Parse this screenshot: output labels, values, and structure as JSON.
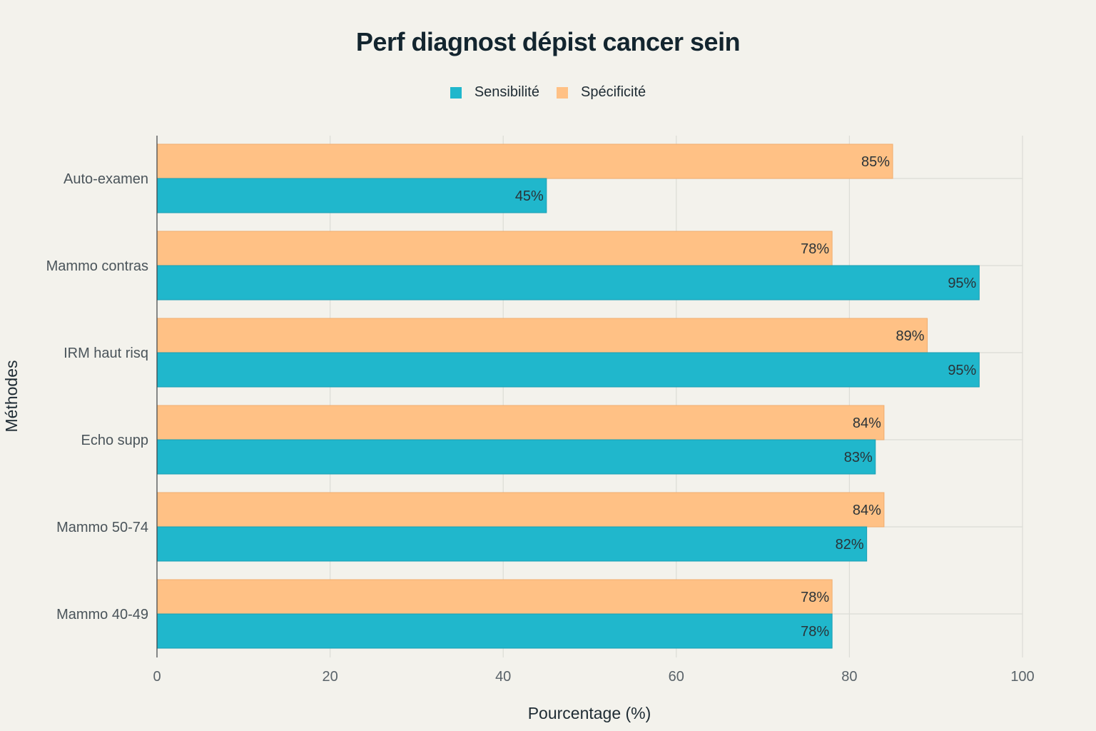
{
  "chart_data": {
    "type": "bar",
    "orientation": "horizontal",
    "title": "Perf diagnost dépist cancer sein",
    "xlabel": "Pourcentage (%)",
    "ylabel": "Méthodes",
    "xlim": [
      0,
      100
    ],
    "xticks": [
      0,
      20,
      40,
      60,
      80,
      100
    ],
    "grid": true,
    "legend_position": "top-center",
    "categories": [
      "Auto-examen",
      "Mammo contras",
      "IRM haut risq",
      "Echo supp",
      "Mammo 50-74",
      "Mammo 40-49"
    ],
    "series": [
      {
        "name": "Sensibilité",
        "color": "#20b7cc",
        "values": [
          45,
          95,
          95,
          83,
          82,
          78
        ],
        "labels": [
          "45%",
          "95%",
          "95%",
          "83%",
          "82%",
          "78%"
        ]
      },
      {
        "name": "Spécificité",
        "color": "#ffc185",
        "values": [
          85,
          78,
          89,
          84,
          84,
          78
        ],
        "labels": [
          "85%",
          "78%",
          "89%",
          "84%",
          "84%",
          "78%"
        ]
      }
    ]
  }
}
